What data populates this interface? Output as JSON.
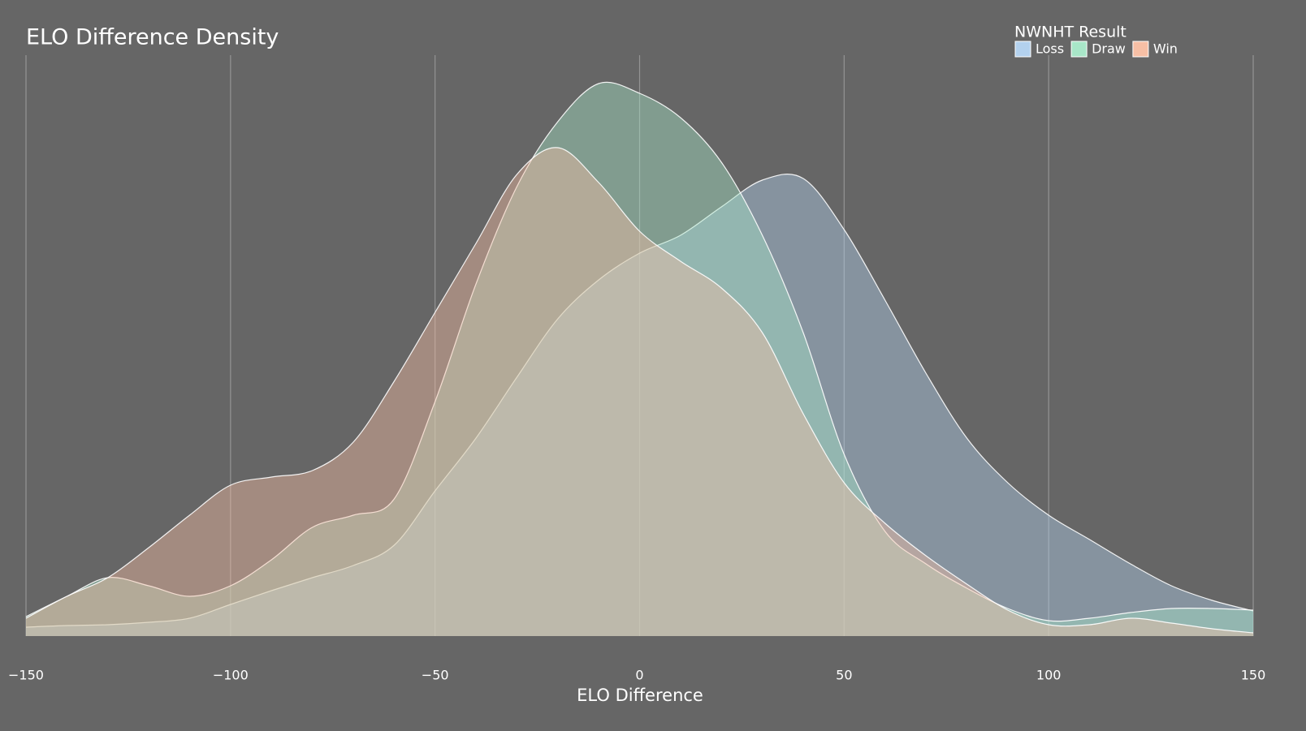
{
  "chart_data": {
    "type": "density",
    "title": "ELO Difference Density",
    "x_label": "ELO Difference",
    "legend_title": "NWNHT Result",
    "legend": "upper right",
    "grid": true,
    "x": [
      -150,
      -140,
      -130,
      -120,
      -110,
      -100,
      -90,
      -80,
      -70,
      -60,
      -50,
      -40,
      -30,
      -20,
      -10,
      0,
      10,
      20,
      30,
      40,
      50,
      60,
      70,
      80,
      90,
      100,
      110,
      120,
      130,
      140,
      150
    ],
    "xlim": [
      -150,
      150
    ],
    "xticks": [
      {
        "value": -150,
        "label": "−150"
      },
      {
        "value": -100,
        "label": "−100"
      },
      {
        "value": -50,
        "label": "−50"
      },
      0,
      50,
      100,
      150
    ],
    "ylim": [
      0,
      0.0072
    ],
    "series": [
      {
        "name": "Loss",
        "color": "#b3d1ee",
        "values": [
          0.00011,
          0.00013,
          0.00014,
          0.00017,
          0.00022,
          0.00039,
          0.00056,
          0.00072,
          0.00087,
          0.00112,
          0.00179,
          0.00244,
          0.00319,
          0.00391,
          0.00439,
          0.00472,
          0.00494,
          0.00529,
          0.00562,
          0.00564,
          0.00501,
          0.00414,
          0.00324,
          0.00244,
          0.00189,
          0.00149,
          0.00119,
          0.00089,
          0.00062,
          0.00044,
          0.00031
        ]
      },
      {
        "name": "Draw",
        "color": "#a8e6c8",
        "values": [
          0.00024,
          0.00049,
          0.00072,
          0.00062,
          0.00049,
          0.00062,
          0.00094,
          0.00134,
          0.00149,
          0.00169,
          0.00289,
          0.00434,
          0.00554,
          0.00634,
          0.00681,
          0.00669,
          0.00639,
          0.00584,
          0.00494,
          0.00374,
          0.00224,
          0.00129,
          0.00089,
          0.00059,
          0.00034,
          0.00019,
          0.00022,
          0.00029,
          0.00034,
          0.00034,
          0.00032
        ]
      },
      {
        "name": "Win",
        "color": "#f7bfa5",
        "values": [
          0.00022,
          0.00049,
          0.00072,
          0.00109,
          0.00149,
          0.00186,
          0.00196,
          0.00204,
          0.00239,
          0.00314,
          0.00399,
          0.00484,
          0.00569,
          0.00602,
          0.00559,
          0.00499,
          0.00462,
          0.00429,
          0.00374,
          0.00274,
          0.00189,
          0.00139,
          0.00099,
          0.00064,
          0.00032,
          0.00014,
          0.00014,
          0.00022,
          0.00016,
          9e-05,
          4e-05
        ]
      }
    ]
  }
}
